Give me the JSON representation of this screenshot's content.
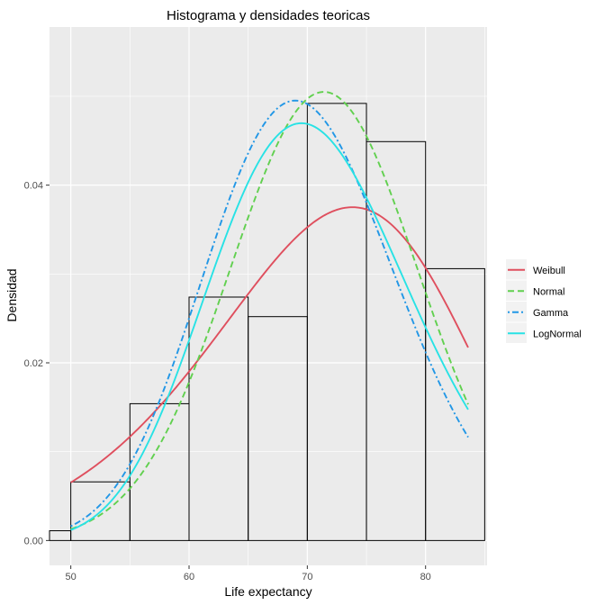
{
  "chart_data": {
    "type": "histogram",
    "title": "Histograma y densidades teoricas",
    "xlabel": "Life expectancy",
    "ylabel": "Densidad",
    "xlim": [
      48.2,
      85.2
    ],
    "ylim": [
      -0.0028,
      0.0578
    ],
    "xticks": [
      50,
      60,
      70,
      80
    ],
    "xtick_labels": [
      "50",
      "60",
      "70",
      "80"
    ],
    "yticks": [
      0.0,
      0.02,
      0.04
    ],
    "ytick_labels": [
      "0.00",
      "0.02",
      "0.04"
    ],
    "grid": true,
    "legend_position": "right",
    "histogram": {
      "bins": [
        {
          "x0": 45,
          "x1": 50,
          "density": 0.0011
        },
        {
          "x0": 50,
          "x1": 55,
          "density": 0.0066
        },
        {
          "x0": 55,
          "x1": 60,
          "density": 0.0154
        },
        {
          "x0": 60,
          "x1": 65,
          "density": 0.0274
        },
        {
          "x0": 65,
          "x1": 70,
          "density": 0.0252
        },
        {
          "x0": 70,
          "x1": 75,
          "density": 0.0492
        },
        {
          "x0": 75,
          "x1": 80,
          "density": 0.0449
        },
        {
          "x0": 80,
          "x1": 85,
          "density": 0.0306
        }
      ]
    },
    "x_range": [
      50,
      83.6
    ],
    "series": [
      {
        "name": "Weibull",
        "color": "#df4f5e",
        "dash": "solid",
        "params": {
          "shape": 7.6,
          "scale": 75.2
        }
      },
      {
        "name": "Normal",
        "color": "#61d04f",
        "dash": "dashed",
        "params": {
          "mean": 71.4,
          "sd": 7.9
        }
      },
      {
        "name": "Gamma",
        "color": "#2297e6",
        "dash": "dotdash",
        "params": {
          "shape": 74.5,
          "rate": 1.0655
        }
      },
      {
        "name": "LogNormal",
        "color": "#28e2e5",
        "dash": "solid",
        "params": {
          "meanlog": 4.2561,
          "sdlog": 0.1213
        }
      }
    ]
  }
}
